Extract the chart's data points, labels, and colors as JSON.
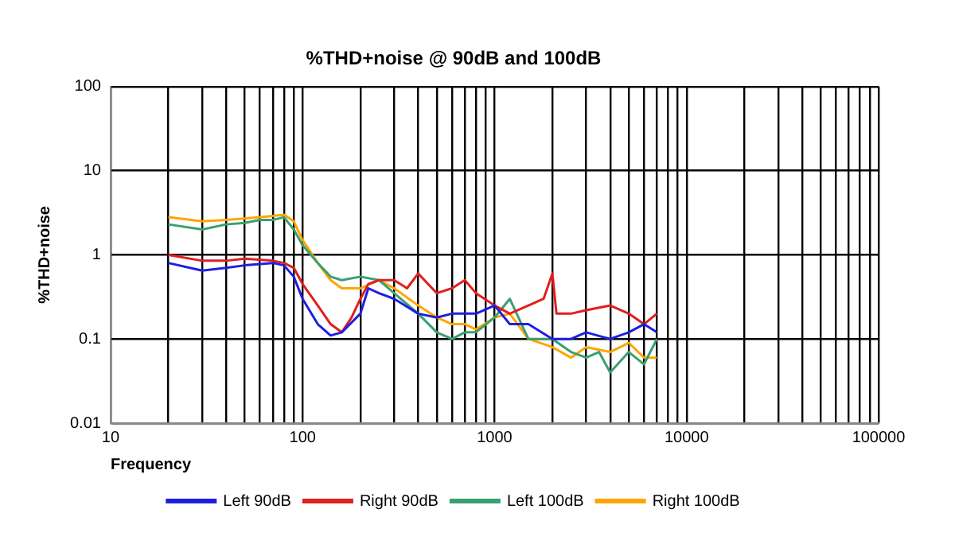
{
  "chart_data": {
    "type": "line",
    "title": "%THD+noise @ 90dB and 100dB",
    "xlabel": "Frequency",
    "ylabel": "%THD+noise",
    "log": "xy",
    "grid": true,
    "legend": "bottom",
    "marker": "none",
    "line_style": "solid",
    "xlim": [
      10,
      100000
    ],
    "ylim": [
      0.01,
      100
    ],
    "xticks": [
      10,
      {
        "value": 20,
        "label": null
      },
      {
        "value": 30,
        "label": null
      },
      {
        "value": 40,
        "label": null
      },
      {
        "value": 50,
        "label": null
      },
      {
        "value": 60,
        "label": null
      },
      {
        "value": 70,
        "label": null
      },
      {
        "value": 80,
        "label": null
      },
      {
        "value": 90,
        "label": null
      },
      100,
      {
        "value": 200,
        "label": null
      },
      {
        "value": 300,
        "label": null
      },
      {
        "value": 400,
        "label": null
      },
      {
        "value": 500,
        "label": null
      },
      {
        "value": 600,
        "label": null
      },
      {
        "value": 700,
        "label": null
      },
      {
        "value": 800,
        "label": null
      },
      {
        "value": 900,
        "label": null
      },
      1000,
      {
        "value": 2000,
        "label": null
      },
      {
        "value": 3000,
        "label": null
      },
      {
        "value": 4000,
        "label": null
      },
      {
        "value": 5000,
        "label": null
      },
      {
        "value": 6000,
        "label": null
      },
      {
        "value": 7000,
        "label": null
      },
      {
        "value": 8000,
        "label": null
      },
      {
        "value": 9000,
        "label": null
      },
      10000,
      {
        "value": 20000,
        "label": null
      },
      {
        "value": 30000,
        "label": null
      },
      {
        "value": 40000,
        "label": null
      },
      {
        "value": 50000,
        "label": null
      },
      {
        "value": 60000,
        "label": null
      },
      {
        "value": 70000,
        "label": null
      },
      {
        "value": 80000,
        "label": null
      },
      {
        "value": 90000,
        "label": null
      },
      100000
    ],
    "yticks": [
      0.01,
      0.1,
      1,
      10,
      100
    ],
    "series": [
      {
        "name": "Left 90dB",
        "color": "#1f1fe0",
        "x": [
          20,
          30,
          40,
          50,
          70,
          80,
          90,
          100,
          120,
          140,
          160,
          200,
          220,
          250,
          300,
          400,
          500,
          600,
          700,
          800,
          1000,
          1200,
          1500,
          2000,
          2500,
          3000,
          4000,
          5000,
          6000,
          7000
        ],
        "values": [
          0.8,
          0.65,
          0.7,
          0.75,
          0.8,
          0.75,
          0.55,
          0.3,
          0.15,
          0.11,
          0.12,
          0.2,
          0.4,
          0.35,
          0.3,
          0.2,
          0.18,
          0.2,
          0.2,
          0.2,
          0.25,
          0.15,
          0.15,
          0.1,
          0.1,
          0.12,
          0.1,
          0.12,
          0.15,
          0.12
        ]
      },
      {
        "name": "Right 90dB",
        "color": "#e01f1f",
        "x": [
          20,
          30,
          40,
          50,
          70,
          80,
          90,
          100,
          120,
          140,
          160,
          180,
          200,
          220,
          250,
          300,
          350,
          400,
          450,
          500,
          600,
          700,
          800,
          1000,
          1200,
          1500,
          1800,
          2000,
          2100,
          2500,
          3000,
          4000,
          5000,
          6000,
          7000
        ],
        "values": [
          1.0,
          0.85,
          0.85,
          0.9,
          0.85,
          0.8,
          0.7,
          0.45,
          0.25,
          0.15,
          0.12,
          0.18,
          0.3,
          0.45,
          0.5,
          0.5,
          0.4,
          0.6,
          0.45,
          0.35,
          0.4,
          0.5,
          0.35,
          0.25,
          0.2,
          0.25,
          0.3,
          0.6,
          0.2,
          0.2,
          0.22,
          0.25,
          0.2,
          0.15,
          0.2
        ]
      },
      {
        "name": "Left 100dB",
        "color": "#3aa070",
        "x": [
          20,
          30,
          40,
          50,
          60,
          70,
          80,
          90,
          100,
          120,
          140,
          160,
          200,
          250,
          300,
          400,
          500,
          600,
          700,
          800,
          1000,
          1200,
          1500,
          2000,
          2500,
          3000,
          3500,
          4000,
          5000,
          6000,
          7000
        ],
        "values": [
          2.3,
          2.0,
          2.3,
          2.4,
          2.6,
          2.6,
          2.8,
          2.0,
          1.3,
          0.8,
          0.55,
          0.5,
          0.55,
          0.5,
          0.35,
          0.2,
          0.12,
          0.1,
          0.12,
          0.12,
          0.18,
          0.3,
          0.1,
          0.1,
          0.07,
          0.06,
          0.07,
          0.04,
          0.07,
          0.05,
          0.1
        ]
      },
      {
        "name": "Right 100dB",
        "color": "#ffa500",
        "x": [
          20,
          30,
          40,
          50,
          60,
          70,
          80,
          90,
          100,
          120,
          140,
          160,
          200,
          250,
          300,
          400,
          500,
          600,
          700,
          800,
          1000,
          1200,
          1500,
          2000,
          2500,
          3000,
          4000,
          5000,
          6000,
          7000
        ],
        "values": [
          2.8,
          2.5,
          2.6,
          2.7,
          2.8,
          2.9,
          3.0,
          2.5,
          1.5,
          0.8,
          0.5,
          0.4,
          0.4,
          0.5,
          0.4,
          0.25,
          0.18,
          0.15,
          0.15,
          0.13,
          0.18,
          0.2,
          0.1,
          0.08,
          0.06,
          0.08,
          0.07,
          0.09,
          0.06,
          0.06
        ]
      }
    ]
  }
}
